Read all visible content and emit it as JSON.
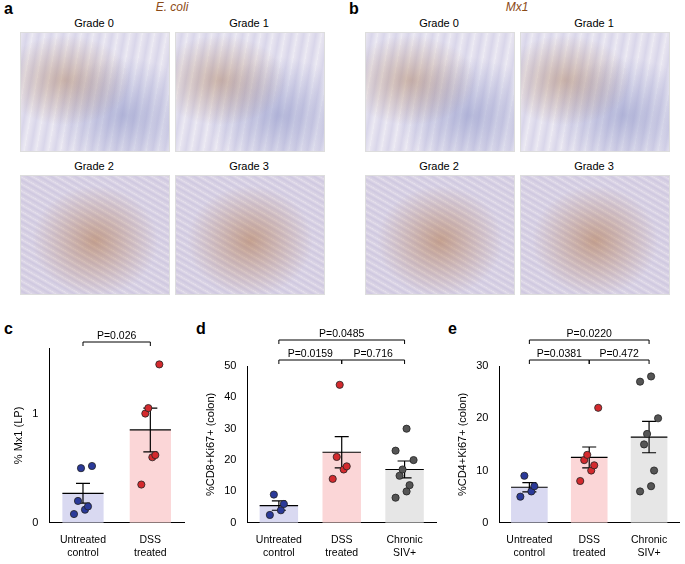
{
  "panels": [
    {
      "panel": "a",
      "title": "E. coli",
      "images": [
        "Grade 0",
        "Grade 1",
        "Grade 2",
        "Grade 3"
      ]
    },
    {
      "panel": "b",
      "title": "Mx1",
      "images": [
        "Grade 0",
        "Grade 1",
        "Grade 2",
        "Grade 3"
      ]
    }
  ],
  "chart_data": [
    {
      "panel": "c",
      "type": "bar",
      "categories": [
        [
          "Untreated",
          "control"
        ],
        [
          "DSS",
          "treated"
        ]
      ],
      "y_label": "% Mx1 (LP)",
      "values": [
        0.27,
        0.85
      ],
      "errors": [
        0.09,
        0.2
      ],
      "colors": [
        "#d9d9f1",
        "#fbd6d7"
      ],
      "points": [
        {
          "color": "#2b3a99",
          "values": [
            0.08,
            0.12,
            0.15,
            0.2,
            0.5,
            0.52
          ]
        },
        {
          "color": "#d42a2e",
          "values": [
            0.35,
            0.6,
            0.62,
            1.0,
            1.05,
            1.45
          ]
        }
      ],
      "ylim": [
        0,
        1.6
      ],
      "yticks": [
        0,
        1
      ],
      "grid": false,
      "annotations": [
        {
          "between": [
            0,
            1
          ],
          "text": "P=0.026"
        }
      ]
    },
    {
      "panel": "d",
      "type": "bar",
      "categories": [
        [
          "Untreated",
          "control"
        ],
        [
          "DSS",
          "treated"
        ],
        [
          "Chronic",
          "SIV+"
        ]
      ],
      "y_label": "%CD8+Ki67+ (colon)",
      "values": [
        5.5,
        22.5,
        17
      ],
      "errors": [
        1.5,
        5,
        2.7
      ],
      "colors": [
        "#d9d9f1",
        "#fbd6d7",
        "#e6e6e6"
      ],
      "points": [
        {
          "color": "#2b3a99",
          "values": [
            2.5,
            4,
            6,
            9
          ]
        },
        {
          "color": "#d42a2e",
          "values": [
            14,
            17,
            18,
            21,
            44
          ]
        },
        {
          "color": "#555555",
          "values": [
            8,
            10,
            12,
            15,
            17,
            20,
            23,
            30
          ]
        }
      ],
      "ylim": [
        0,
        50
      ],
      "yticks": [
        0,
        10,
        20,
        30,
        40,
        50
      ],
      "grid": false,
      "annotations": [
        {
          "between": [
            0,
            1
          ],
          "text": "P=0.0159"
        },
        {
          "between": [
            1,
            2
          ],
          "text": "P=0.716"
        },
        {
          "between": [
            0,
            2
          ],
          "text": "P=0.0485"
        }
      ]
    },
    {
      "panel": "e",
      "type": "bar",
      "categories": [
        [
          "Untreated",
          "control"
        ],
        [
          "DSS",
          "treated"
        ],
        [
          "Chronic",
          "SIV+"
        ]
      ],
      "y_label": "%CD4+Ki67+ (colon)",
      "values": [
        6.8,
        12.5,
        16.4
      ],
      "errors": [
        0.9,
        2,
        3
      ],
      "colors": [
        "#d9d9f1",
        "#fbd6d7",
        "#e6e6e6"
      ],
      "points": [
        {
          "color": "#2b3a99",
          "values": [
            5,
            6,
            7,
            9
          ]
        },
        {
          "color": "#d42a2e",
          "values": [
            8,
            10,
            11,
            12,
            13,
            22
          ]
        },
        {
          "color": "#555555",
          "values": [
            6,
            7,
            10,
            15,
            17,
            20,
            27,
            28
          ]
        }
      ],
      "ylim": [
        0,
        30
      ],
      "yticks": [
        0,
        10,
        20,
        30
      ],
      "grid": false,
      "annotations": [
        {
          "between": [
            0,
            1
          ],
          "text": "P=0.0381"
        },
        {
          "between": [
            1,
            2
          ],
          "text": "P=0.472"
        },
        {
          "between": [
            0,
            2
          ],
          "text": "P=0.0220"
        }
      ]
    }
  ]
}
